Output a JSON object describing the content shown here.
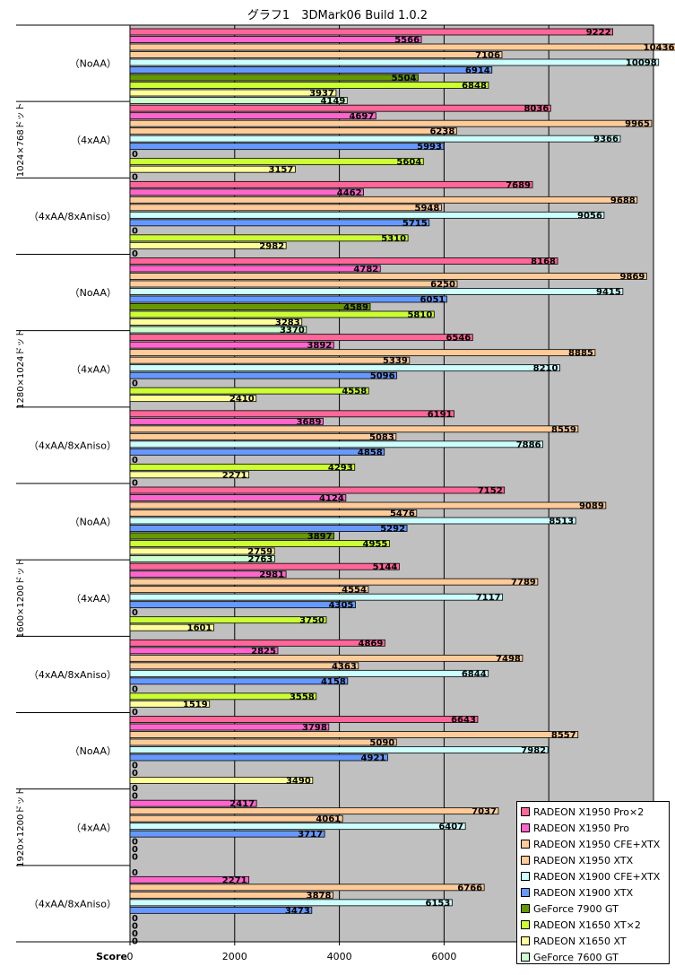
{
  "chart_data": {
    "type": "bar",
    "orientation": "horizontal",
    "title": "グラフ1　3DMark06 Build 1.0.2",
    "xlabel": "Score",
    "xlim": [
      0,
      10000
    ],
    "xticks": [
      "0",
      "2000",
      "4000",
      "6000",
      "8000"
    ],
    "grid": "vertical",
    "legend_position": "bottom-right",
    "groups": [
      {
        "resolution": "1024×768ドット",
        "settings": [
          {
            "label": "（NoAA）",
            "values": [
              9222,
              5566,
              10436,
              7106,
              10098,
              6914,
              5504,
              6848,
              3937,
              4149
            ]
          },
          {
            "label": "（4xAA）",
            "values": [
              8036,
              4697,
              9965,
              6238,
              9366,
              5993,
              0,
              5604,
              3157,
              0
            ]
          },
          {
            "label": "（4xAA/8xAniso）",
            "values": [
              7689,
              4462,
              9688,
              5948,
              9056,
              5715,
              0,
              5310,
              2982,
              0
            ]
          }
        ]
      },
      {
        "resolution": "1280×1024ドット",
        "settings": [
          {
            "label": "（NoAA）",
            "values": [
              8168,
              4782,
              9869,
              6250,
              9415,
              6051,
              4589,
              5810,
              3283,
              3370
            ]
          },
          {
            "label": "（4xAA）",
            "values": [
              6546,
              3892,
              8885,
              5339,
              8210,
              5096,
              0,
              4558,
              2410,
              null
            ]
          },
          {
            "label": "（4xAA/8xAniso）",
            "values": [
              6191,
              3689,
              8559,
              5083,
              7886,
              4858,
              0,
              4293,
              2271,
              0
            ]
          }
        ]
      },
      {
        "resolution": "1600×1200ドット",
        "settings": [
          {
            "label": "（NoAA）",
            "values": [
              7152,
              4124,
              9089,
              5476,
              8513,
              5292,
              3897,
              4955,
              2759,
              2763
            ]
          },
          {
            "label": "（4xAA）",
            "values": [
              5144,
              2981,
              7789,
              4554,
              7117,
              4305,
              0,
              3750,
              1601,
              null
            ]
          },
          {
            "label": "（4xAA/8xAniso）",
            "values": [
              4869,
              2825,
              7498,
              4363,
              6844,
              4158,
              0,
              3558,
              1519,
              0
            ]
          }
        ]
      },
      {
        "resolution": "1920×1200ドット",
        "settings": [
          {
            "label": "（NoAA）",
            "values": [
              6643,
              3798,
              8557,
              5090,
              7982,
              4921,
              0,
              0,
              3490,
              0
            ]
          },
          {
            "label": "（4xAA）",
            "values": [
              0,
              2417,
              7037,
              4061,
              6407,
              3717,
              0,
              0,
              0,
              null
            ]
          },
          {
            "label": "（4xAA/8xAniso）",
            "values": [
              0,
              2271,
              6766,
              3878,
              6153,
              3473,
              0,
              0,
              0,
              0
            ]
          }
        ]
      }
    ],
    "series": [
      {
        "name": "RADEON X1950 Pro×2",
        "color": "#ff6699"
      },
      {
        "name": "RADEON X1950 Pro",
        "color": "#ff66cc"
      },
      {
        "name": "RADEON X1950 CFE+XTX",
        "color": "#ffcc99"
      },
      {
        "name": "RADEON X1950 XTX",
        "color": "#ffcc99"
      },
      {
        "name": "RADEON X1900 CFE+XTX",
        "color": "#ccffff"
      },
      {
        "name": "RADEON X1900 XTX",
        "color": "#6699ff"
      },
      {
        "name": "GeForce 7900 GT",
        "color": "#669900"
      },
      {
        "name": "RADEON X1650 XT×2",
        "color": "#ccff33"
      },
      {
        "name": "RADEON X1650 XT",
        "color": "#ffff99"
      },
      {
        "name": "GeForce 7600 GT",
        "color": "#ccffcc"
      }
    ]
  }
}
